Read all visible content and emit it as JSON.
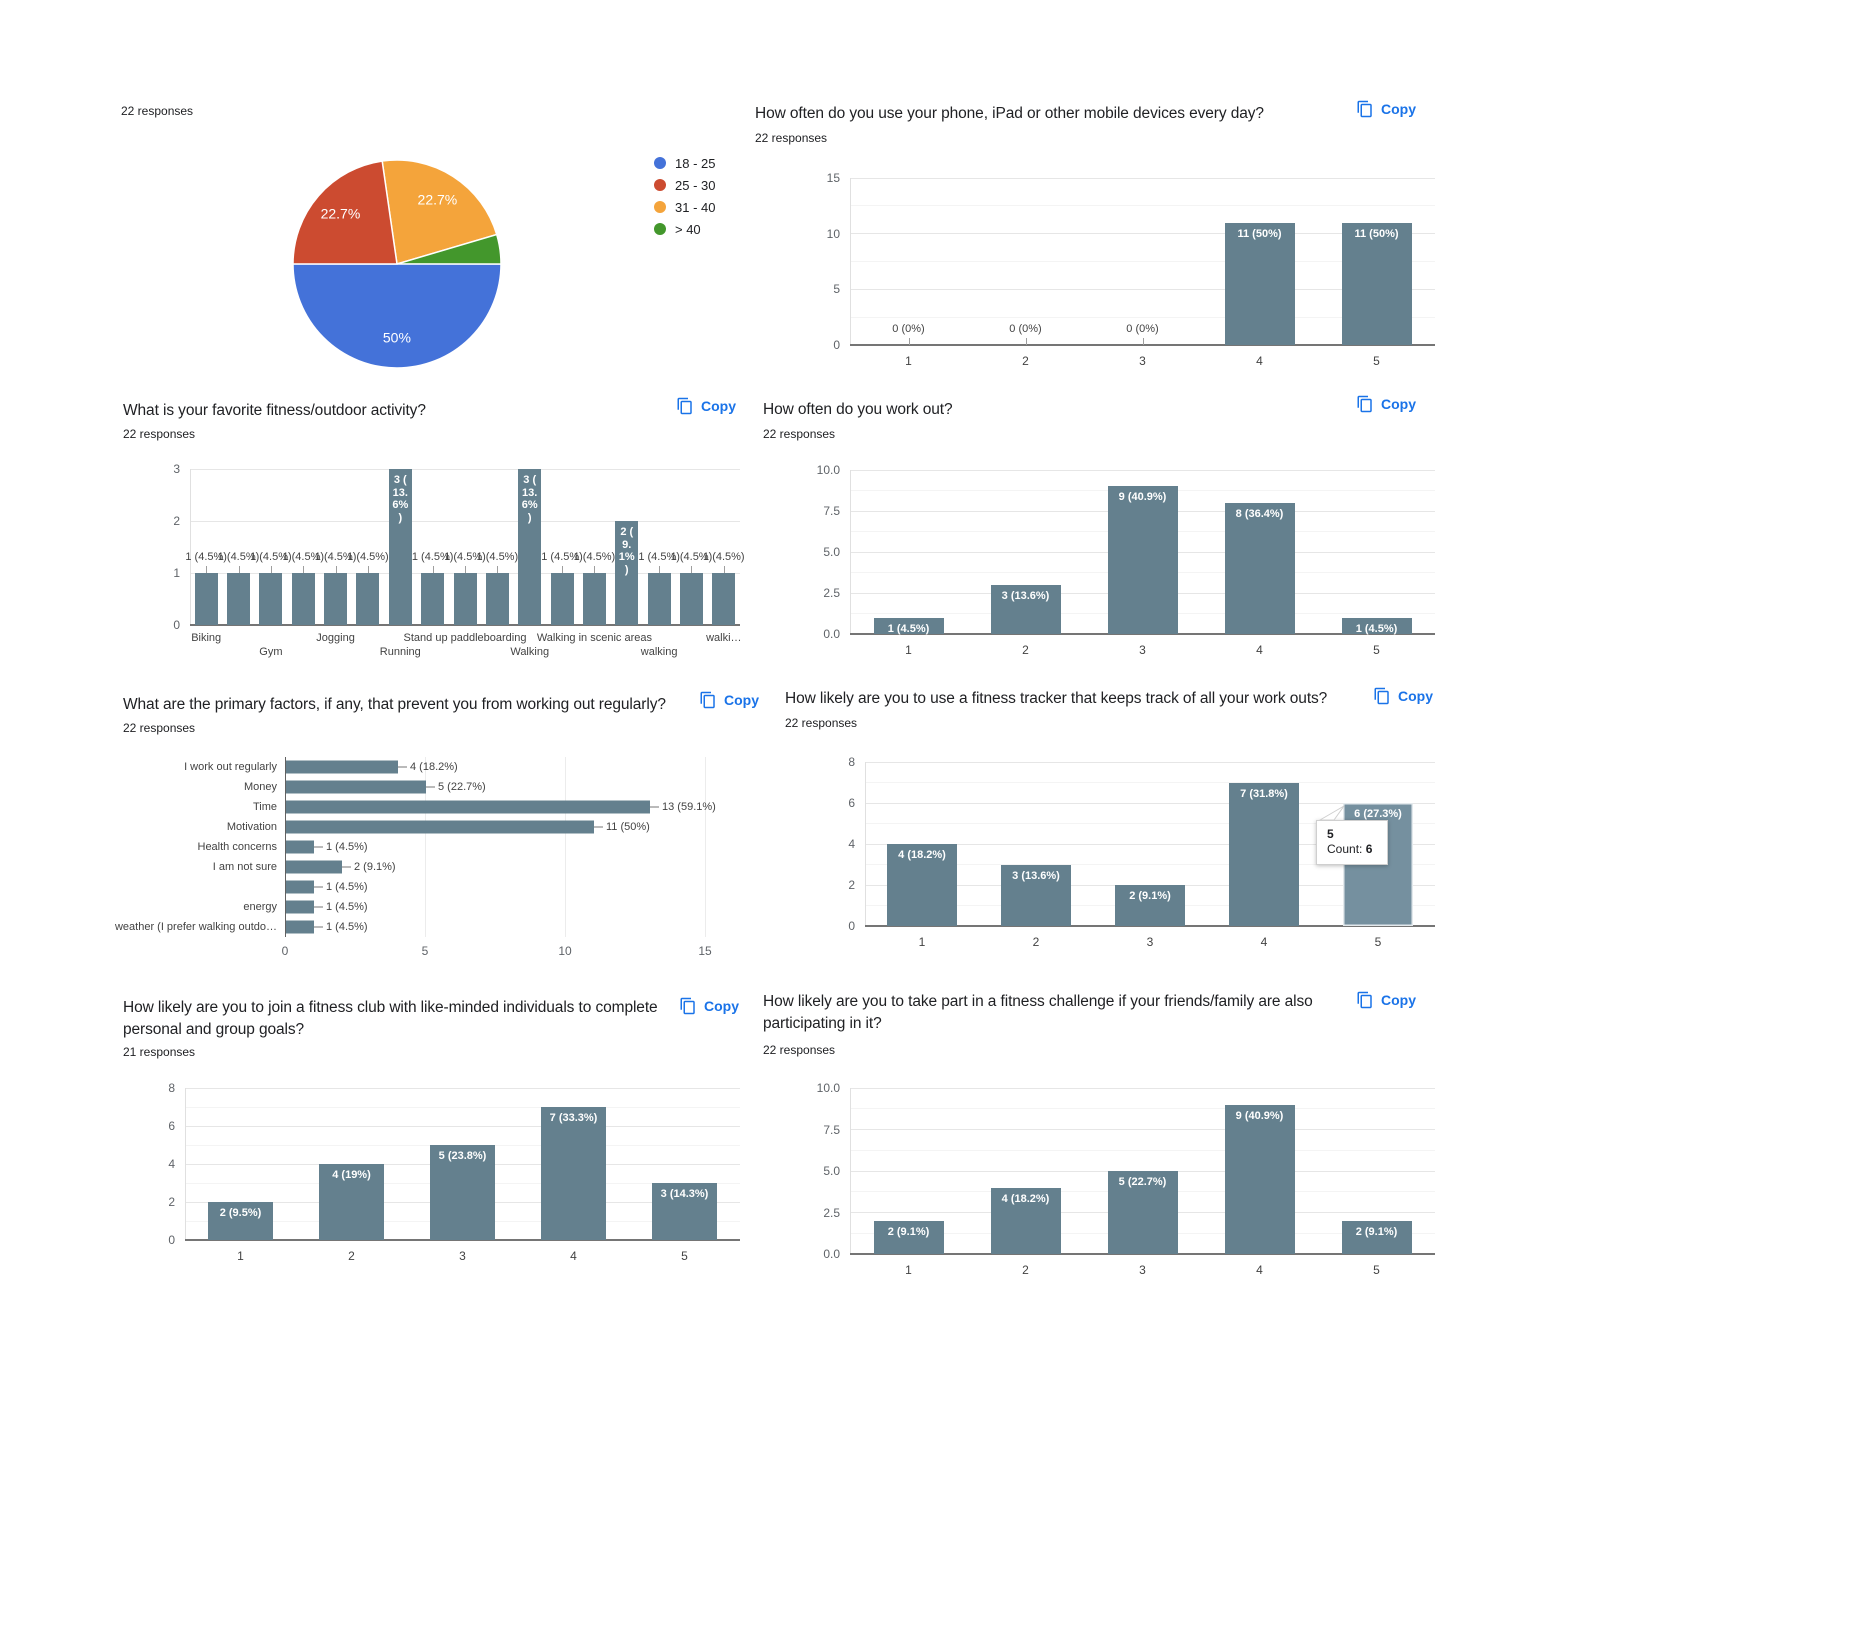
{
  "palette": {
    "bar": "#64808e",
    "bar_hover": "#75909f",
    "copy_blue": "#1a73e8",
    "baseline": "#757575"
  },
  "legend": {
    "items": [
      {
        "label": "18 - 25",
        "color": "#4472d9"
      },
      {
        "label": "25 - 30",
        "color": "#cc4b30"
      },
      {
        "label": "31 - 40",
        "color": "#f4a43b"
      },
      {
        "label": "> 40",
        "color": "#43972c"
      }
    ]
  },
  "charts": {
    "age": {
      "responses": "22 responses",
      "chart_data": {
        "type": "pie",
        "labels": [
          "18 - 25",
          "25 - 30",
          "31 - 40",
          "> 40"
        ],
        "values": [
          50,
          22.7,
          22.7,
          4.6
        ],
        "slice_labels": [
          "50%",
          "22.7%",
          "22.7%",
          ""
        ],
        "colors": [
          "#4472d9",
          "#cc4b30",
          "#f4a43b",
          "#43972c"
        ],
        "draw_order": [
          2,
          3,
          0,
          1
        ],
        "start_angle_deg": -8.2,
        "legend_position": "right"
      }
    },
    "phone": {
      "title": "How often do you use your phone, iPad or other mobile devices every day?",
      "copy": "Copy",
      "responses": "22 responses",
      "chart_data": {
        "type": "bar",
        "categories": [
          "1",
          "2",
          "3",
          "4",
          "5"
        ],
        "values": [
          0,
          0,
          0,
          11,
          11
        ],
        "bar_labels": [
          "0 (0%)",
          "0 (0%)",
          "0 (0%)",
          "11 (50%)",
          "11 (50%)"
        ],
        "yticks": [
          0,
          5,
          10,
          15
        ],
        "ytick_labels": [
          "0",
          "5",
          "10",
          "15"
        ],
        "ymax": 15
      }
    },
    "activity": {
      "title": "What is your favorite fitness/outdoor activity?",
      "copy": "Copy",
      "responses": "22 responses",
      "chart_data": {
        "type": "bar",
        "values": [
          1,
          1,
          1,
          1,
          1,
          1,
          3,
          1,
          1,
          1,
          3,
          1,
          1,
          2,
          1,
          1,
          1
        ],
        "bar_labels": [
          "1 (4.5%)",
          "1 (4.5%)",
          "1 (4.5%)",
          "1 (4.5%)",
          "1 (4.5%)",
          "1 (4.5%)",
          "3 (\n13.\n6%\n)",
          "1 (4.5%)",
          "1 (4.5%)",
          "1 (4.5%)",
          "3 (\n13.\n6%\n)",
          "1 (4.5%)",
          "1 (4.5%)",
          "2 (\n9.\n1%\n)",
          "1 (4.5%)",
          "1 (4.5%)",
          "1 (4.5%)"
        ],
        "x_axis_labels": [
          "Biking",
          "Gym",
          "Jogging",
          "Running",
          "Stand up paddleboarding",
          "Walking",
          "Walking in scenic areas",
          "walking",
          "walki…"
        ],
        "yticks": [
          0,
          1,
          2,
          3
        ],
        "ytick_labels": [
          "0",
          "1",
          "2",
          "3"
        ],
        "ymax": 3
      }
    },
    "workout": {
      "title": "How often do you work out?",
      "copy": "Copy",
      "responses": "22 responses",
      "chart_data": {
        "type": "bar",
        "categories": [
          "1",
          "2",
          "3",
          "4",
          "5"
        ],
        "values": [
          1,
          3,
          9,
          8,
          1
        ],
        "bar_labels": [
          "1 (4.5%)",
          "3 (13.6%)",
          "9 (40.9%)",
          "8 (36.4%)",
          "1 (4.5%)"
        ],
        "yticks": [
          0,
          2.5,
          5,
          7.5,
          10
        ],
        "ytick_labels": [
          "0.0",
          "2.5",
          "5.0",
          "7.5",
          "10.0"
        ],
        "ymax": 10
      }
    },
    "factors": {
      "title": "What are the primary factors, if any, that prevent you from working out regularly?",
      "copy": "Copy",
      "responses": "22 responses",
      "chart_data": {
        "type": "bar_horizontal",
        "categories": [
          "I work out regularly",
          "Money",
          "Time",
          "Motivation",
          "Health concerns",
          "I am not sure",
          "",
          "energy",
          "weather (I prefer walking outdo…"
        ],
        "values": [
          4,
          5,
          13,
          11,
          1,
          2,
          1,
          1,
          1
        ],
        "bar_labels": [
          "4 (18.2%)",
          "5 (22.7%)",
          "13 (59.1%)",
          "11 (50%)",
          "1 (4.5%)",
          "2 (9.1%)",
          "1 (4.5%)",
          "1 (4.5%)",
          "1 (4.5%)"
        ],
        "xticks": [
          0,
          5,
          10,
          15
        ],
        "xtick_labels": [
          "0",
          "5",
          "10",
          "15"
        ]
      }
    },
    "tracker": {
      "title": "How likely are you to use a fitness tracker that keeps track of all your work outs?",
      "copy": "Copy",
      "responses": "22 responses",
      "chart_data": {
        "type": "bar",
        "categories": [
          "1",
          "2",
          "3",
          "4",
          "5"
        ],
        "values": [
          4,
          3,
          2,
          7,
          6
        ],
        "bar_labels": [
          "4 (18.2%)",
          "3 (13.6%)",
          "2 (9.1%)",
          "7 (31.8%)",
          "6 (27.3%)"
        ],
        "yticks": [
          0,
          2,
          4,
          6,
          8
        ],
        "ytick_labels": [
          "0",
          "2",
          "4",
          "6",
          "8"
        ],
        "ymax": 8,
        "hover_index": 4
      },
      "tooltip": {
        "title": "5",
        "count_label": "Count:",
        "count_value": "6"
      }
    },
    "club": {
      "title": "How likely are you to join a fitness club with like-minded individuals to complete personal and group goals?",
      "copy": "Copy",
      "responses": "21 responses",
      "chart_data": {
        "type": "bar",
        "categories": [
          "1",
          "2",
          "3",
          "4",
          "5"
        ],
        "values": [
          2,
          4,
          5,
          7,
          3
        ],
        "bar_labels": [
          "2 (9.5%)",
          "4 (19%)",
          "5 (23.8%)",
          "7 (33.3%)",
          "3 (14.3%)"
        ],
        "yticks": [
          0,
          2,
          4,
          6,
          8
        ],
        "ytick_labels": [
          "0",
          "2",
          "4",
          "6",
          "8"
        ],
        "ymax": 8
      }
    },
    "challenge": {
      "title": "How likely are you to take part in a fitness challenge if your friends/family are also participating in it?",
      "copy": "Copy",
      "responses": "22 responses",
      "chart_data": {
        "type": "bar",
        "categories": [
          "1",
          "2",
          "3",
          "4",
          "5"
        ],
        "values": [
          2,
          4,
          5,
          9,
          2
        ],
        "bar_labels": [
          "2 (9.1%)",
          "4 (18.2%)",
          "5 (22.7%)",
          "9 (40.9%)",
          "2 (9.1%)"
        ],
        "yticks": [
          0,
          2.5,
          5,
          7.5,
          10
        ],
        "ytick_labels": [
          "0.0",
          "2.5",
          "5.0",
          "7.5",
          "10.0"
        ],
        "ymax": 10
      }
    }
  }
}
